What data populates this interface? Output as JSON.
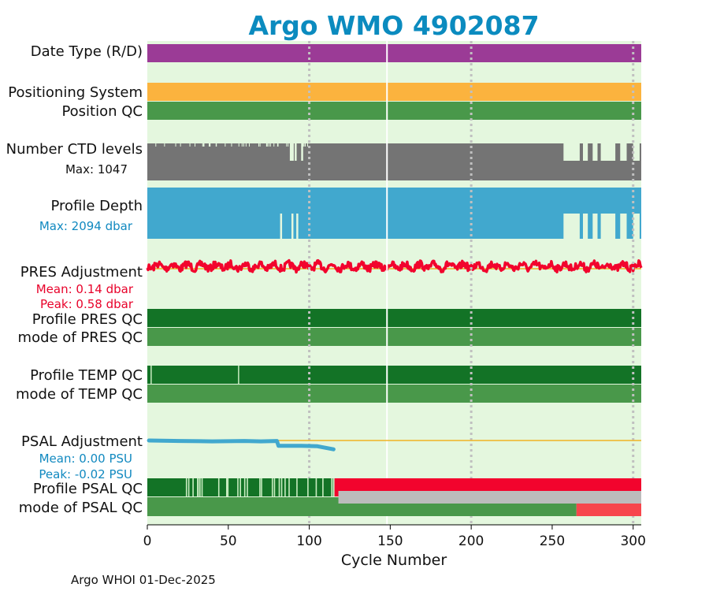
{
  "chart_data": {
    "type": "table",
    "title": "Argo WMO 4902087",
    "xlabel": "Cycle Number",
    "footer": "Argo WHOI 01-Dec-2025",
    "xlim": [
      0,
      305
    ],
    "xticks": [
      0,
      50,
      100,
      150,
      200,
      250,
      300
    ],
    "highlight_cycle": 148,
    "rows": {
      "date_type": {
        "label": "Date Type (R/D)"
      },
      "positioning": {
        "label": "Positioning System"
      },
      "position_qc": {
        "label": "Position QC"
      },
      "ctd_levels": {
        "label": "Number CTD levels",
        "note": "Max: 1047"
      },
      "profile_depth": {
        "label": "Profile Depth",
        "note": "Max: 2094 dbar"
      },
      "pres_adj": {
        "label": "PRES Adjustment",
        "mean": "Mean: 0.14 dbar",
        "peak": "Peak: 0.58 dbar"
      },
      "profile_pres_qc": {
        "label": "Profile PRES QC"
      },
      "mode_pres_qc": {
        "label": "mode of PRES QC"
      },
      "profile_temp_qc": {
        "label": "Profile TEMP QC"
      },
      "mode_temp_qc": {
        "label": "mode of TEMP QC"
      },
      "psal_adj": {
        "label": "PSAL Adjustment",
        "mean": "Mean: 0.00 PSU",
        "peak": "Peak: -0.02 PSU"
      },
      "profile_psal_qc": {
        "label": "Profile PSAL QC"
      },
      "mode_psal_qc": {
        "label": "mode of PSAL QC"
      }
    },
    "psal_adjustment_trace": {
      "x": [
        1,
        20,
        40,
        60,
        70,
        80,
        81,
        85,
        95,
        105,
        115
      ],
      "y": [
        0.0,
        -0.001,
        -0.002,
        -0.001,
        -0.002,
        -0.001,
        -0.012,
        -0.012,
        -0.012,
        -0.013,
        -0.02
      ]
    },
    "psal_qc_events": {
      "profile_red_from_cycle": 115,
      "mode_gray_from_cycle": 118,
      "mode_red_from_cycle": 265
    },
    "colors": {
      "background": "#e4f7de",
      "title": "#0b8bbf",
      "date_type": "#9b3b96",
      "positioning": "#fbb33e",
      "qc_green": "#49984a",
      "qc_dark_green": "#137326",
      "ctd": "#747474",
      "depth": "#41a8ce",
      "pres_line": "#f2042d",
      "psal_line": "#41a8ce",
      "zero_line": "#f0b323",
      "qc_red": "#f2042d",
      "qc_light_red": "#f7464c",
      "qc_gray": "#bcbcbc",
      "psal_note": "#1189c0",
      "pres_note": "#e8022a"
    }
  }
}
